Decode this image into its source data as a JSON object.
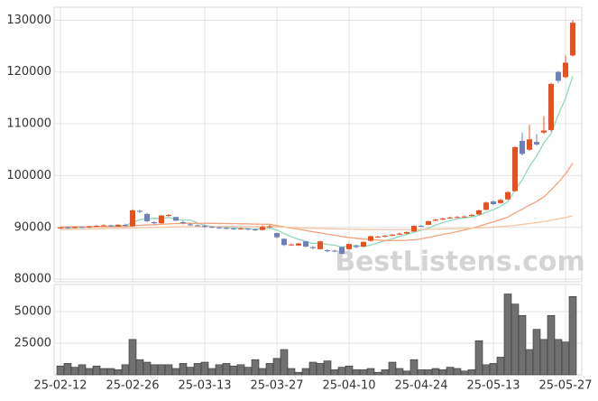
{
  "chart_data": {
    "type": "candlestick",
    "watermark": "BestListens.com",
    "categories": [
      "25-02-12",
      null,
      null,
      null,
      null,
      null,
      null,
      null,
      null,
      null,
      "25-02-26",
      null,
      null,
      null,
      null,
      null,
      null,
      null,
      null,
      null,
      "25-03-13",
      null,
      null,
      null,
      null,
      null,
      null,
      null,
      null,
      null,
      "25-03-27",
      null,
      null,
      null,
      null,
      null,
      null,
      null,
      null,
      null,
      "25-04-10",
      null,
      null,
      null,
      null,
      null,
      null,
      null,
      null,
      null,
      "25-04-24",
      null,
      null,
      null,
      null,
      null,
      null,
      null,
      null,
      null,
      "25-05-13",
      null,
      null,
      null,
      null,
      null,
      null,
      null,
      null,
      null,
      "25-05-27",
      null
    ],
    "open": [
      89800,
      90000,
      89900,
      90100,
      90000,
      90200,
      90300,
      90400,
      90200,
      90500,
      90200,
      93200,
      92600,
      91000,
      90800,
      92300,
      92000,
      91000,
      90600,
      90400,
      90300,
      90100,
      90000,
      89900,
      89800,
      89700,
      89800,
      89600,
      89500,
      90100,
      88900,
      87800,
      86700,
      86500,
      87300,
      86200,
      85800,
      85600,
      85500,
      86200,
      85800,
      86400,
      86300,
      87400,
      88100,
      88200,
      88400,
      88600,
      88800,
      89200,
      90300,
      90500,
      91300,
      91500,
      91800,
      91900,
      92000,
      92200,
      92500,
      93400,
      95000,
      94700,
      95400,
      97000,
      106700,
      105000,
      106500,
      108300,
      108800,
      120000,
      119000,
      123200
    ],
    "high": [
      90100,
      90200,
      90200,
      90200,
      90300,
      90500,
      90600,
      90500,
      90600,
      90700,
      93500,
      93400,
      92800,
      91200,
      92400,
      92600,
      92100,
      91300,
      90800,
      90600,
      90500,
      90300,
      90200,
      90100,
      90000,
      90000,
      89900,
      89800,
      90400,
      90500,
      89000,
      87900,
      86900,
      87000,
      87400,
      86400,
      87400,
      85800,
      85700,
      86300,
      86900,
      86600,
      87300,
      88400,
      88400,
      88500,
      88700,
      89000,
      89200,
      90400,
      90500,
      91300,
      91700,
      91900,
      92100,
      92200,
      92300,
      92600,
      93400,
      95000,
      95200,
      95500,
      97000,
      105600,
      108300,
      109800,
      108000,
      111500,
      117900,
      120200,
      123200,
      130000
    ],
    "low": [
      89700,
      89700,
      89800,
      89900,
      89900,
      90100,
      90200,
      90100,
      90100,
      90200,
      90100,
      92800,
      91000,
      90600,
      90700,
      92100,
      91200,
      90600,
      90300,
      90200,
      89900,
      89900,
      89700,
      89600,
      89500,
      89600,
      89400,
      89300,
      89400,
      89900,
      87900,
      86400,
      86500,
      86400,
      86200,
      85800,
      85700,
      85200,
      85200,
      84800,
      85600,
      86000,
      86200,
      87300,
      88000,
      88100,
      88300,
      88500,
      88700,
      89100,
      90100,
      90400,
      91200,
      91400,
      91700,
      91800,
      91900,
      92100,
      92400,
      93300,
      94300,
      94600,
      95300,
      96900,
      103900,
      104800,
      105800,
      108000,
      108500,
      117900,
      118800,
      123000
    ],
    "close": [
      90000,
      89900,
      90100,
      90000,
      90200,
      90300,
      90400,
      90200,
      90500,
      90300,
      93300,
      93000,
      91200,
      90800,
      92300,
      92400,
      91300,
      90800,
      90400,
      90300,
      90100,
      90000,
      89900,
      89800,
      89700,
      89800,
      89600,
      89500,
      90100,
      90200,
      88100,
      86600,
      86700,
      86900,
      86300,
      86000,
      87300,
      85400,
      85400,
      84900,
      86800,
      86200,
      87200,
      88300,
      88200,
      88400,
      88600,
      88800,
      89100,
      90300,
      90200,
      91200,
      91500,
      91700,
      91900,
      92000,
      92100,
      92400,
      93300,
      94800,
      94500,
      95300,
      96800,
      105500,
      104200,
      107000,
      106000,
      108700,
      117700,
      118300,
      121800,
      129500
    ],
    "up_color": "#e8501d",
    "down_color": "#6f80bb",
    "volume": [
      7000,
      9000,
      6000,
      8000,
      5000,
      7000,
      5000,
      5000,
      4000,
      8000,
      28000,
      12000,
      10000,
      8000,
      8000,
      8000,
      5000,
      9000,
      6000,
      9000,
      10000,
      5000,
      8000,
      9000,
      7000,
      8000,
      6000,
      12000,
      5000,
      9000,
      13000,
      20000,
      5000,
      2000,
      5000,
      10000,
      9000,
      11000,
      4000,
      6000,
      7000,
      4000,
      4000,
      5000,
      2000,
      4000,
      10000,
      5000,
      3000,
      12000,
      4000,
      4000,
      5000,
      4000,
      6000,
      5000,
      3000,
      4000,
      27000,
      8000,
      9000,
      14000,
      64000,
      56000,
      47000,
      20000,
      36000,
      28000,
      47000,
      28000,
      26000,
      62000
    ],
    "volume_color": "#707070",
    "moving_averages": [
      {
        "color": "#8fd8bd",
        "values": [
          89900,
          89950,
          89950,
          90000,
          90040,
          90100,
          90200,
          90260,
          90320,
          90340,
          90940,
          91500,
          91660,
          91760,
          91720,
          91940,
          91540,
          91400,
          91440,
          90840,
          90380,
          90180,
          90100,
          89960,
          89860,
          89820,
          89720,
          89660,
          89740,
          89840,
          89500,
          88800,
          88200,
          87700,
          87300,
          86900,
          86980,
          86720,
          86560,
          86200,
          86360,
          86540,
          86260,
          86600,
          87000,
          87460,
          87780,
          88260,
          88620,
          89080,
          89440,
          89860,
          90440,
          90920,
          91300,
          91660,
          91840,
          92020,
          92340,
          92900,
          93400,
          94060,
          94940,
          97180,
          99220,
          101760,
          103800,
          106280,
          108140,
          111740,
          114900,
          119200
        ]
      },
      {
        "color": "#f2a27c",
        "values": [
          90100,
          90100,
          90120,
          90100,
          90100,
          90120,
          90140,
          90150,
          90150,
          90160,
          90300,
          90420,
          90480,
          90520,
          90600,
          90680,
          90740,
          90760,
          90780,
          90790,
          90800,
          90780,
          90760,
          90740,
          90720,
          90700,
          90680,
          90640,
          90620,
          90600,
          90350,
          90100,
          89850,
          89650,
          89400,
          89150,
          88950,
          88700,
          88480,
          88230,
          88050,
          87900,
          87750,
          87650,
          87550,
          87480,
          87450,
          87480,
          87520,
          87600,
          87800,
          88050,
          88350,
          88650,
          88900,
          89200,
          89500,
          89850,
          90200,
          90650,
          91050,
          91500,
          92000,
          92800,
          93500,
          94300,
          95000,
          95900,
          97200,
          98700,
          100300,
          102400
        ]
      },
      {
        "color": "#f5c6a5",
        "values": [
          89600,
          89620,
          89650,
          89670,
          89700,
          89720,
          89750,
          89780,
          89800,
          89820,
          89880,
          89930,
          89960,
          89990,
          90030,
          90070,
          90100,
          90120,
          90140,
          90160,
          90170,
          90170,
          90170,
          90170,
          90170,
          90160,
          90160,
          90150,
          90150,
          90140,
          90100,
          90050,
          90000,
          89950,
          89900,
          89850,
          89800,
          89760,
          89720,
          89680,
          89650,
          89620,
          89600,
          89580,
          89560,
          89550,
          89550,
          89560,
          89570,
          89580,
          89600,
          89630,
          89660,
          89690,
          89720,
          89760,
          89800,
          89850,
          89910,
          89980,
          90060,
          90150,
          90250,
          90400,
          90560,
          90740,
          90930,
          91130,
          91380,
          91650,
          91900,
          92200
        ]
      }
    ],
    "ylim": [
      79500,
      132500
    ],
    "yticks": [
      80000,
      90000,
      100000,
      110000,
      120000,
      130000
    ],
    "volume_ylim": [
      0,
      71500
    ],
    "volume_yticks": [
      25000,
      50000
    ],
    "grid": true
  }
}
